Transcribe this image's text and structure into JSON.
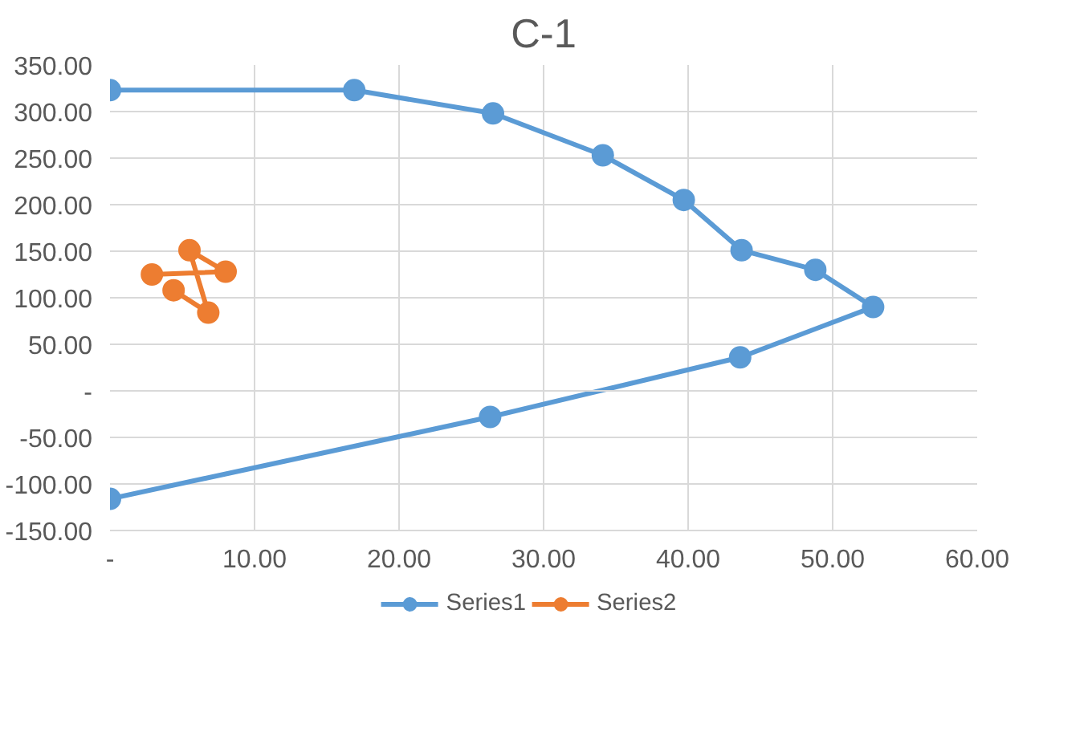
{
  "chart_data": {
    "type": "line",
    "title": "C-1",
    "series": [
      {
        "name": "Series1",
        "color": "#5b9bd5",
        "x": [
          0,
          16.9,
          26.5,
          34.1,
          39.7,
          43.7,
          48.8,
          52.8,
          43.6,
          26.3,
          0
        ],
        "values": [
          323,
          323,
          298,
          253,
          205,
          151,
          130,
          90,
          36,
          -28,
          -116
        ]
      },
      {
        "name": "Series2",
        "color": "#ed7d31",
        "x": [
          4.4,
          6.8,
          5.5,
          8.0,
          2.9
        ],
        "values": [
          108,
          84,
          151,
          128,
          125
        ]
      }
    ],
    "xlim": [
      0,
      60
    ],
    "ylim": [
      -150,
      350
    ],
    "xticks": [
      {
        "value": 0,
        "label": "-"
      },
      {
        "value": 10,
        "label": "10.00"
      },
      {
        "value": 20,
        "label": "20.00"
      },
      {
        "value": 30,
        "label": "30.00"
      },
      {
        "value": 40,
        "label": "40.00"
      },
      {
        "value": 50,
        "label": "50.00"
      },
      {
        "value": 60,
        "label": "60.00"
      }
    ],
    "yticks": [
      {
        "value": -150,
        "label": "-150.00"
      },
      {
        "value": -100,
        "label": "-100.00"
      },
      {
        "value": -50,
        "label": "-50.00"
      },
      {
        "value": 0,
        "label": "-"
      },
      {
        "value": 50,
        "label": "50.00"
      },
      {
        "value": 100,
        "label": "100.00"
      },
      {
        "value": 150,
        "label": "150.00"
      },
      {
        "value": 200,
        "label": "200.00"
      },
      {
        "value": 250,
        "label": "250.00"
      },
      {
        "value": 300,
        "label": "300.00"
      },
      {
        "value": 350,
        "label": "350.00"
      }
    ],
    "grid": true,
    "legend": "bottom",
    "marker": "circle",
    "line_style": "solid"
  }
}
